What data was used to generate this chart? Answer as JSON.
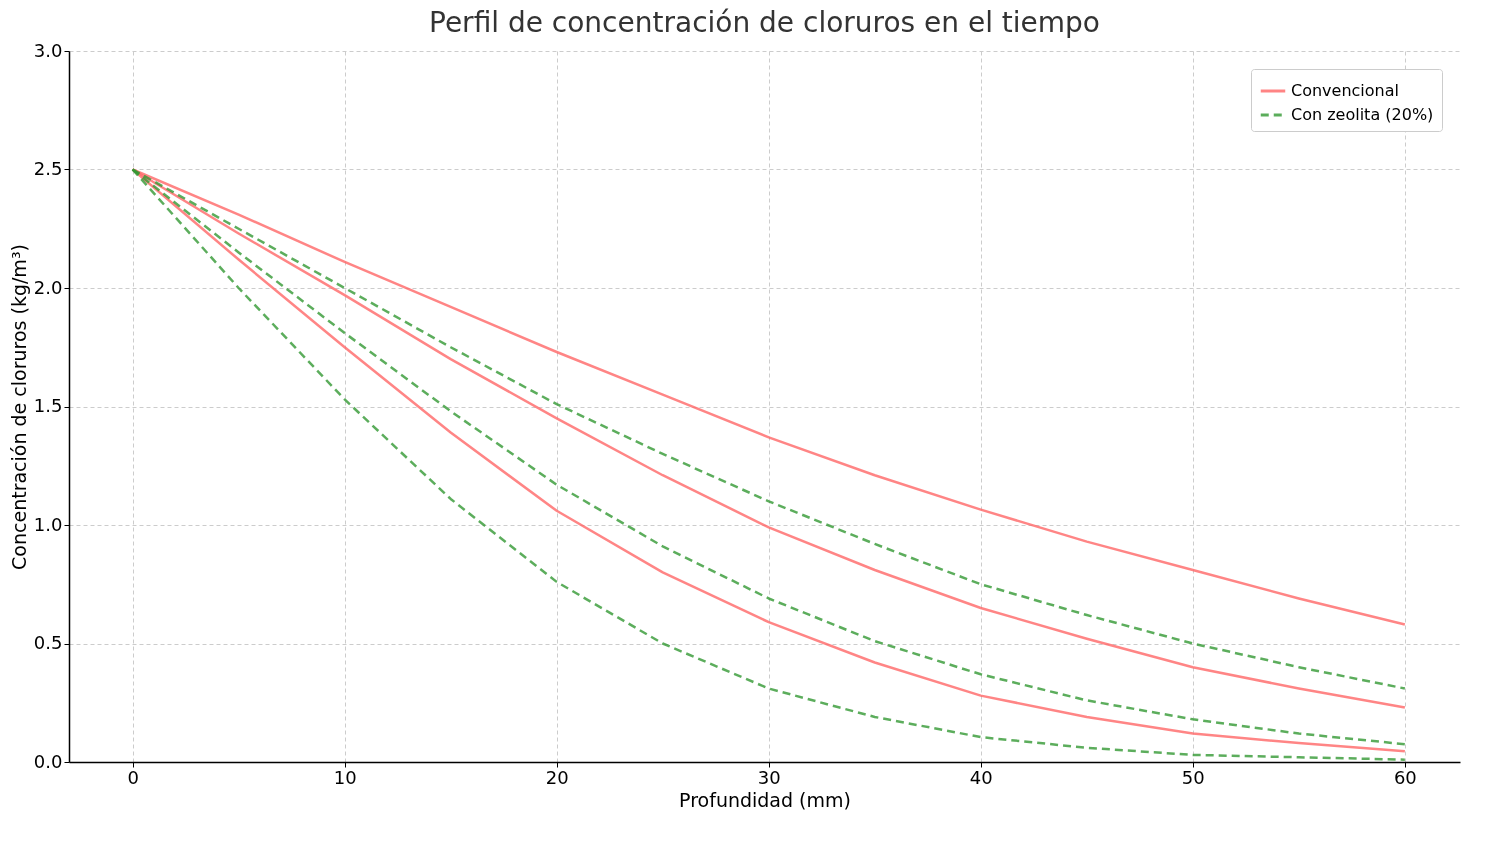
{
  "chart_data": {
    "type": "line",
    "title": "Perfil de concentración de cloruros en el tiempo",
    "xlabel": "Profundidad (mm)",
    "ylabel": "Concentración de cloruros (kg/m³)",
    "x": [
      0,
      5,
      10,
      15,
      20,
      25,
      30,
      35,
      40,
      45,
      50,
      55,
      60
    ],
    "series": [
      {
        "name": "Convencional",
        "color": "#ff6666",
        "line_style": "solid",
        "values": [
          2.5,
          2.31,
          2.11,
          1.92,
          1.73,
          1.55,
          1.37,
          1.21,
          1.065,
          0.93,
          0.81,
          0.69,
          0.58
        ]
      },
      {
        "color": "#ff6666",
        "line_style": "solid",
        "values": [
          2.5,
          2.23,
          1.97,
          1.7,
          1.45,
          1.21,
          0.99,
          0.81,
          0.65,
          0.52,
          0.4,
          0.31,
          0.23
        ]
      },
      {
        "color": "#ff6666",
        "line_style": "solid",
        "values": [
          2.5,
          2.12,
          1.75,
          1.39,
          1.06,
          0.8,
          0.59,
          0.42,
          0.28,
          0.19,
          0.12,
          0.08,
          0.045
        ]
      },
      {
        "name": "Con zeolita (20%)",
        "color": "#339933",
        "line_style": "dashed",
        "values": [
          2.5,
          2.25,
          2.0,
          1.75,
          1.51,
          1.3,
          1.1,
          0.92,
          0.75,
          0.62,
          0.5,
          0.4,
          0.31
        ]
      },
      {
        "color": "#339933",
        "line_style": "dashed",
        "values": [
          2.5,
          2.15,
          1.81,
          1.48,
          1.17,
          0.91,
          0.69,
          0.51,
          0.37,
          0.26,
          0.18,
          0.12,
          0.075
        ]
      },
      {
        "color": "#339933",
        "line_style": "dashed",
        "values": [
          2.5,
          2.0,
          1.53,
          1.11,
          0.76,
          0.5,
          0.31,
          0.19,
          0.105,
          0.06,
          0.03,
          0.02,
          0.01
        ]
      }
    ],
    "xlim": [
      -3,
      62.6
    ],
    "ylim": [
      0,
      3
    ],
    "xticks": [
      0,
      10,
      20,
      30,
      40,
      50,
      60
    ],
    "yticks": [
      {
        "value": 0,
        "label": "0.0"
      },
      0.5,
      {
        "value": 1,
        "label": "1.0"
      },
      1.5,
      {
        "value": 2,
        "label": "2.0"
      },
      2.5,
      {
        "value": 3,
        "label": "3.0"
      }
    ],
    "grid": true,
    "legend": "top right",
    "marker": "none"
  }
}
